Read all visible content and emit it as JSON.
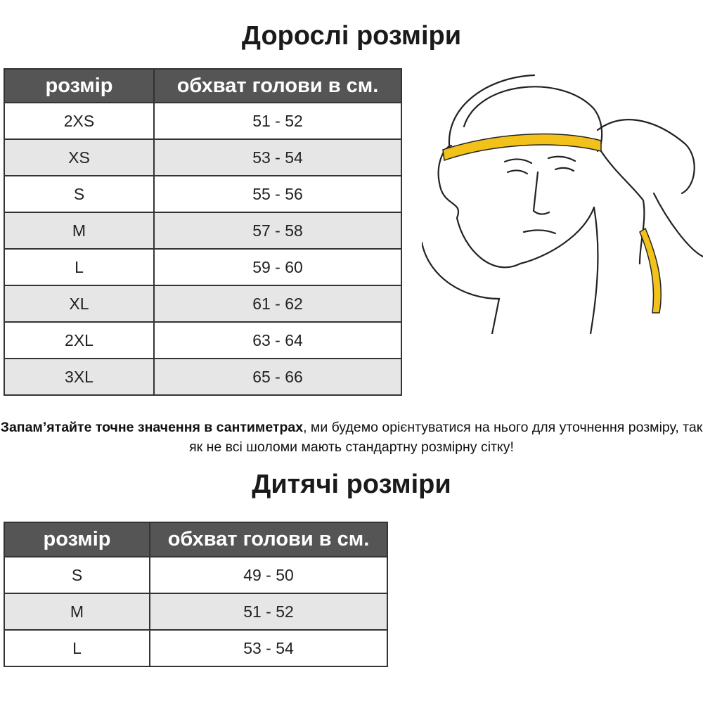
{
  "adult": {
    "title": "Дорослі розміри",
    "headers": [
      "розмір",
      "обхват голови в см."
    ],
    "rows": [
      {
        "size": "2XS",
        "range": "51 - 52"
      },
      {
        "size": "XS",
        "range": "53 - 54"
      },
      {
        "size": "S",
        "range": "55 - 56"
      },
      {
        "size": "M",
        "range": "57 - 58"
      },
      {
        "size": "L",
        "range": "59 - 60"
      },
      {
        "size": "XL",
        "range": "61 - 62"
      },
      {
        "size": "2XL",
        "range": "63 - 64"
      },
      {
        "size": "3XL",
        "range": "65 - 66"
      }
    ]
  },
  "note": {
    "bold": "Запам’ятайте точне значення в сантиметрах",
    "rest": ", ми будемо орієнтуватися на нього для уточнення розміру, так як не всі шоломи мають стандартну розмірну сітку!"
  },
  "kids": {
    "title": "Дитячі розміри",
    "headers": [
      "розмір",
      "обхват голови в см."
    ],
    "rows": [
      {
        "size": "S",
        "range": "49 - 50"
      },
      {
        "size": "M",
        "range": "51 - 52"
      },
      {
        "size": "L",
        "range": "53 - 54"
      }
    ]
  },
  "colors": {
    "header_bg": "#555555",
    "alt_row": "#e6e6e6",
    "tape": "#f2c21b"
  },
  "illustration": {
    "icon": "head-measuring-tape-illustration"
  }
}
